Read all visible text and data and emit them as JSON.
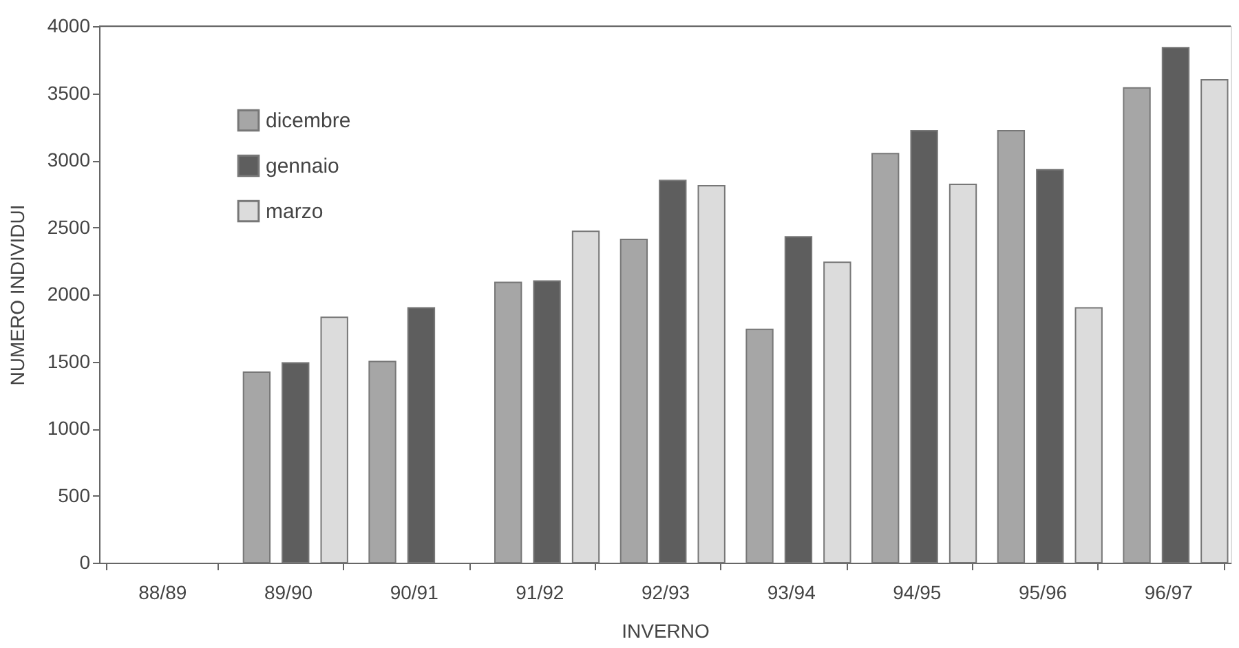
{
  "chart_data": {
    "type": "bar",
    "xlabel": "INVERNO",
    "ylabel": "NUMERO INDIVIDUI",
    "categories": [
      "88/89",
      "89/90",
      "90/91",
      "91/92",
      "92/93",
      "93/94",
      "94/95",
      "95/96",
      "96/97"
    ],
    "series": [
      {
        "name": "dicembre",
        "color": "#a6a6a6",
        "values": [
          null,
          1420,
          1500,
          2090,
          2410,
          1740,
          3050,
          3220,
          3540
        ]
      },
      {
        "name": "gennaio",
        "color": "#5e5e5e",
        "values": [
          null,
          1490,
          1900,
          2100,
          2850,
          2430,
          3220,
          2930,
          3840
        ]
      },
      {
        "name": "marzo",
        "color": "#dcdcdc",
        "values": [
          null,
          1830,
          null,
          2470,
          2810,
          2240,
          2820,
          1900,
          3600
        ]
      }
    ],
    "ylim": [
      0,
      4000
    ],
    "yticks": [
      0,
      500,
      1000,
      1500,
      2000,
      2500,
      3000,
      3500,
      4000
    ],
    "grid": false,
    "legend": "top left"
  }
}
